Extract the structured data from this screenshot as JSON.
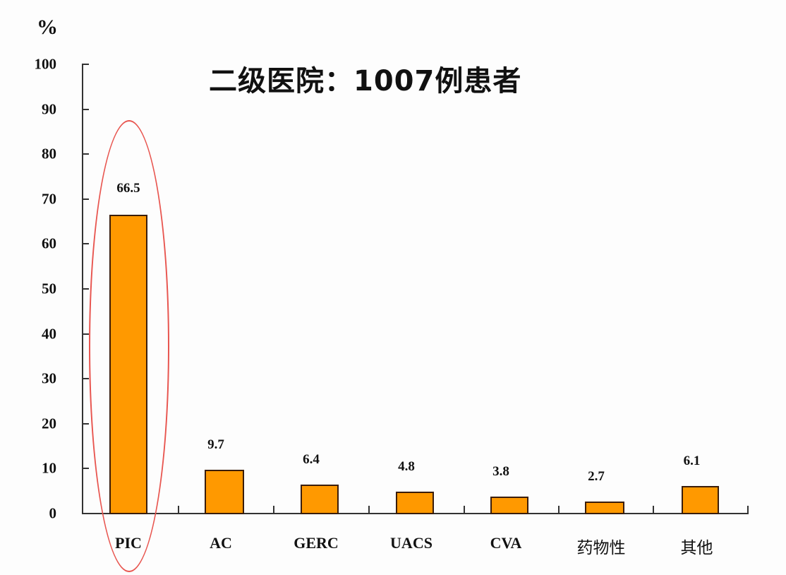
{
  "chart_data": {
    "type": "bar",
    "title": "二级医院：1007例患者",
    "ylabel": "%",
    "xlabel": "",
    "ylim": [
      0,
      100
    ],
    "yticks": [
      "0",
      "10",
      "20",
      "30",
      "40",
      "50",
      "60",
      "70",
      "80",
      "90",
      "100"
    ],
    "categories": [
      "PIC",
      "AC",
      "GERC",
      "UACS",
      "CVA",
      "药物性",
      "其他"
    ],
    "values": [
      66.5,
      9.7,
      6.4,
      4.8,
      3.8,
      2.7,
      6.1
    ],
    "value_labels": [
      "66.5",
      "9.7",
      "6.4",
      "4.8",
      "3.8",
      "2.7",
      "6.1"
    ],
    "bar_color": "#ff9900",
    "bar_edge_color": "#3a1d0a",
    "grid": false,
    "legend": null,
    "annotations": [
      {
        "type": "ellipse",
        "target": "PIC",
        "color": "#e8554f"
      }
    ]
  }
}
